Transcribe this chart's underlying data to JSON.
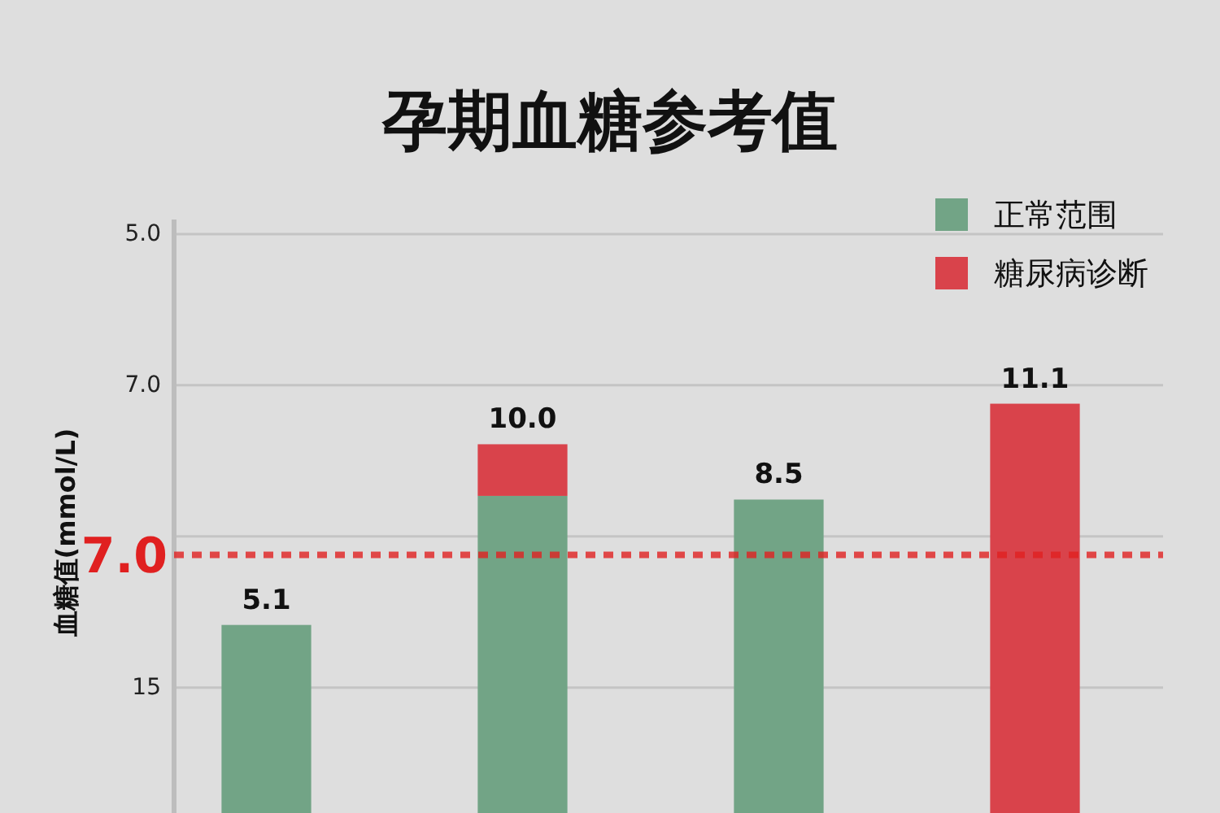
{
  "chart_data": {
    "type": "bar",
    "title": "孕期血糖参考值",
    "ylabel": "血糖值(mmol/L)",
    "categories": [
      null,
      null,
      null,
      null
    ],
    "stacked": true,
    "series": [
      {
        "name": "正常范围",
        "color": "#72a486",
        "values": [
          5.1,
          8.6,
          8.5,
          null
        ],
        "value_labels": [
          "5.1",
          null,
          "8.5",
          null
        ]
      },
      {
        "name": "糖尿病诊断",
        "color": "#d9434b",
        "values": [
          null,
          1.4,
          null,
          11.1
        ],
        "value_labels": [
          null,
          null,
          null,
          "11.1"
        ]
      }
    ],
    "totals": [
      null,
      "10.0",
      null,
      null
    ],
    "annotations": [
      "5.0",
      "7.0",
      "15"
    ],
    "ref_lines": [
      {
        "axis": "y",
        "value": 15.7,
        "color": "#c4c4c4",
        "line_style": "solid"
      },
      {
        "axis": "y",
        "value": 11.6,
        "color": "#c4c4c4",
        "line_style": "solid"
      },
      {
        "axis": "y",
        "value": 7.5,
        "color": "#c4c4c4",
        "line_style": "solid"
      },
      {
        "axis": "y",
        "value": 3.4,
        "color": "#c4c4c4",
        "line_style": "solid"
      },
      {
        "axis": "y",
        "value": 7.0,
        "label": "7.0",
        "color": "#e02020",
        "line_style": "dashed"
      }
    ],
    "legend": "top right"
  }
}
